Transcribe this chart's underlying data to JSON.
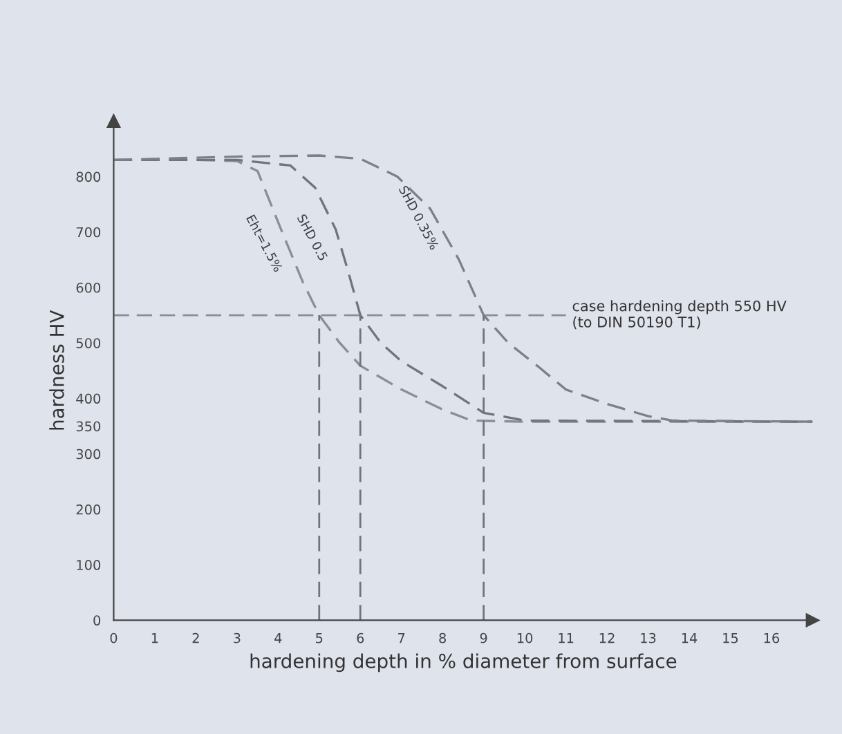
{
  "chart_data": {
    "type": "line",
    "xlabel": "hardening depth in % diameter from surface",
    "ylabel": "hardness HV",
    "xlim": [
      0,
      17
    ],
    "ylim": [
      0,
      900
    ],
    "xticks": [
      0,
      1,
      2,
      3,
      4,
      5,
      6,
      7,
      8,
      9,
      10,
      11,
      12,
      13,
      14,
      15,
      16
    ],
    "yticks": [
      0,
      100,
      200,
      300,
      350,
      400,
      500,
      600,
      700,
      800
    ],
    "grid": false,
    "line_style": "dashed",
    "series": [
      {
        "name": "Eht=1.5%",
        "color": "#8a8e96",
        "x": [
          0,
          2,
          3,
          3.5,
          4.07,
          4.6,
          5,
          5.5,
          6,
          7,
          8,
          8.7,
          10,
          17
        ],
        "values": [
          830,
          830,
          828,
          810,
          705,
          610,
          550,
          500,
          459,
          416,
          380,
          360,
          358,
          358
        ]
      },
      {
        "name": "SHD 0.5",
        "color": "#70747c",
        "x": [
          0,
          3,
          4.3,
          4.9,
          5.4,
          5.7,
          6,
          6.5,
          7,
          8,
          9,
          10,
          17
        ],
        "values": [
          830,
          830,
          820,
          780,
          705,
          630,
          550,
          500,
          467,
          422,
          374,
          360,
          358
        ]
      },
      {
        "name": "SHD 0.35%",
        "color": "#7c8088",
        "x": [
          0,
          3,
          5,
          6,
          6.9,
          7.7,
          8.4,
          9,
          9.6,
          10.3,
          11,
          12,
          13,
          13.6,
          17
        ],
        "values": [
          830,
          836,
          838,
          832,
          800,
          742,
          650,
          550,
          500,
          459,
          416,
          390,
          368,
          360,
          358
        ]
      }
    ],
    "ref_lines": [
      {
        "axis": "y",
        "value": 550,
        "color": "#8a8e96",
        "line_style": "dashed"
      },
      {
        "axis": "x",
        "value": 5,
        "color": "#70747c",
        "line_style": "dashed"
      },
      {
        "axis": "x",
        "value": 6,
        "color": "#70747c",
        "line_style": "dashed"
      },
      {
        "axis": "x",
        "value": 9,
        "color": "#70747c",
        "line_style": "dashed"
      }
    ],
    "annotations": [
      {
        "text": "case hardening depth 550 HV\n(to DIN 50190 T1)",
        "x": 11,
        "y": 550
      }
    ]
  }
}
